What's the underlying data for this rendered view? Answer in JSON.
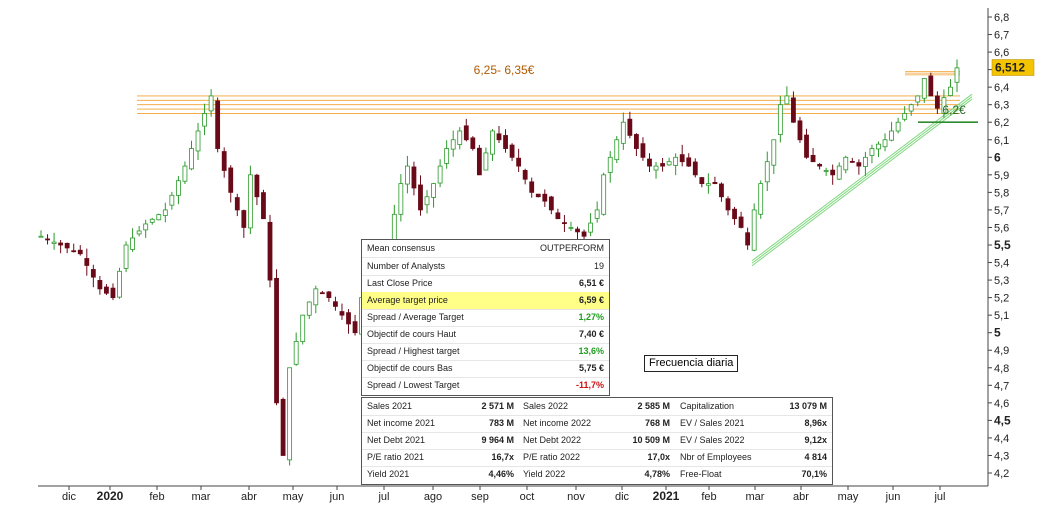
{
  "chart_data": {
    "type": "candlestick",
    "price_axis": {
      "ticks": [
        "6,8",
        "6,7",
        "6,6",
        "6,5",
        "6,4",
        "6,3",
        "6,2",
        "6,1",
        "6",
        "5,9",
        "5,8",
        "5,7",
        "5,6",
        "5,5",
        "5,4",
        "5,3",
        "5,2",
        "5,1",
        "5",
        "4,9",
        "4,8",
        "4,7",
        "4,6",
        "4,5",
        "4,4",
        "4,3",
        "4,2"
      ],
      "bold_ticks": [
        "6",
        "5,5",
        "5",
        "4,5"
      ],
      "range": [
        4.15,
        6.83
      ],
      "last_price_label": "6,512",
      "last_price_value": 6.512
    },
    "time_axis": {
      "labels": [
        "dic",
        "2020",
        "feb",
        "mar",
        "abr",
        "may",
        "jun",
        "jul",
        "ago",
        "sep",
        "oct",
        "nov",
        "dic",
        "2021",
        "feb",
        "mar",
        "abr",
        "may",
        "jun",
        "jul"
      ],
      "bold_labels": [
        "2020",
        "2021"
      ]
    },
    "price_path": [
      [
        0,
        5.55
      ],
      [
        3,
        5.5
      ],
      [
        6,
        5.45
      ],
      [
        9,
        5.25
      ],
      [
        11,
        5.2
      ],
      [
        13,
        5.5
      ],
      [
        16,
        5.62
      ],
      [
        19,
        5.7
      ],
      [
        22,
        5.95
      ],
      [
        24,
        6.15
      ],
      [
        26,
        6.35
      ],
      [
        27,
        6.05
      ],
      [
        29,
        5.8
      ],
      [
        31,
        5.6
      ],
      [
        32,
        5.9
      ],
      [
        34,
        5.65
      ],
      [
        35,
        5.3
      ],
      [
        36,
        4.6
      ],
      [
        37,
        4.3
      ],
      [
        38,
        4.8
      ],
      [
        40,
        5.1
      ],
      [
        42,
        5.25
      ],
      [
        44,
        5.2
      ],
      [
        46,
        5.1
      ],
      [
        48,
        5.0
      ],
      [
        49,
        5.2
      ],
      [
        51,
        5.25
      ],
      [
        53,
        5.5
      ],
      [
        55,
        5.85
      ],
      [
        56,
        5.95
      ],
      [
        58,
        5.7
      ],
      [
        60,
        5.85
      ],
      [
        62,
        6.05
      ],
      [
        64,
        6.15
      ],
      [
        66,
        6.05
      ],
      [
        67,
        5.9
      ],
      [
        69,
        6.15
      ],
      [
        71,
        6.05
      ],
      [
        73,
        5.95
      ],
      [
        75,
        5.8
      ],
      [
        77,
        5.75
      ],
      [
        79,
        5.65
      ],
      [
        81,
        5.6
      ],
      [
        83,
        5.55
      ],
      [
        85,
        5.7
      ],
      [
        86,
        5.9
      ],
      [
        88,
        6.1
      ],
      [
        89,
        6.2
      ],
      [
        91,
        6.05
      ],
      [
        93,
        5.95
      ],
      [
        95,
        5.95
      ],
      [
        97,
        6.0
      ],
      [
        99,
        5.95
      ],
      [
        101,
        5.85
      ],
      [
        103,
        5.85
      ],
      [
        105,
        5.7
      ],
      [
        107,
        5.6
      ],
      [
        108,
        5.5
      ],
      [
        109,
        5.7
      ],
      [
        110,
        5.85
      ],
      [
        112,
        6.1
      ],
      [
        113,
        6.3
      ],
      [
        114,
        6.35
      ],
      [
        115,
        6.2
      ],
      [
        117,
        6.0
      ],
      [
        119,
        5.95
      ],
      [
        121,
        5.9
      ],
      [
        123,
        6.0
      ],
      [
        125,
        5.95
      ],
      [
        127,
        6.05
      ],
      [
        129,
        6.1
      ],
      [
        131,
        6.2
      ],
      [
        132,
        6.25
      ],
      [
        134,
        6.35
      ],
      [
        135,
        6.45
      ],
      [
        136,
        6.35
      ],
      [
        137,
        6.28
      ],
      [
        139,
        6.4
      ],
      [
        140,
        6.51
      ]
    ],
    "annotations": {
      "resistance_zone_label": "6,25- 6,35€",
      "resistance_zone_range": [
        6.25,
        6.35
      ],
      "support_label": "6,2€",
      "support_level": 6.2,
      "frequency_label": "Frecuencia diaria"
    },
    "colors": {
      "up_candle": "#2a9a2a",
      "down_candle": "#6a0a18",
      "resistance_zone": "#f0a030",
      "trendline": "#7ed87e",
      "price_badge": "#f5c400"
    }
  },
  "consensus": {
    "header_label": "Mean consensus",
    "header_value": "OUTPERFORM",
    "rows": [
      {
        "label": "Number of Analysts",
        "value": "19",
        "style": ""
      },
      {
        "label": "Last Close Price",
        "value": "6,51 €",
        "style": "bold"
      },
      {
        "label": "Average target price",
        "value": "6,59 €",
        "style": "bold",
        "highlight": true
      },
      {
        "label": "Spread / Average Target",
        "value": "1,27%",
        "style": "green"
      },
      {
        "label": "Objectif de cours Haut",
        "value": "7,40 €",
        "style": "bold"
      },
      {
        "label": "Spread / Highest target",
        "value": "13,6%",
        "style": "green"
      },
      {
        "label": "Objectif de cours Bas",
        "value": "5,75 €",
        "style": "bold"
      },
      {
        "label": "Spread / Lowest Target",
        "value": "-11,7%",
        "style": "red"
      }
    ]
  },
  "financials": {
    "rows": [
      [
        [
          "Sales 2021",
          "2 571 M"
        ],
        [
          "Sales 2022",
          "2 585 M"
        ],
        [
          "Capitalization",
          "13 079 M"
        ]
      ],
      [
        [
          "Net income 2021",
          "783 M"
        ],
        [
          "Net income 2022",
          "768 M"
        ],
        [
          "EV / Sales 2021",
          "8,96x"
        ]
      ],
      [
        [
          "Net Debt 2021",
          "9 964 M"
        ],
        [
          "Net Debt 2022",
          "10 509 M"
        ],
        [
          "EV / Sales 2022",
          "9,12x"
        ]
      ],
      [
        [
          "P/E ratio 2021",
          "16,7x"
        ],
        [
          "P/E ratio 2022",
          "17,0x"
        ],
        [
          "Nbr of Employees",
          "4 814"
        ]
      ],
      [
        [
          "Yield 2021",
          "4,46%"
        ],
        [
          "Yield 2022",
          "4,78%"
        ],
        [
          "Free-Float",
          "70,1%"
        ]
      ]
    ]
  }
}
